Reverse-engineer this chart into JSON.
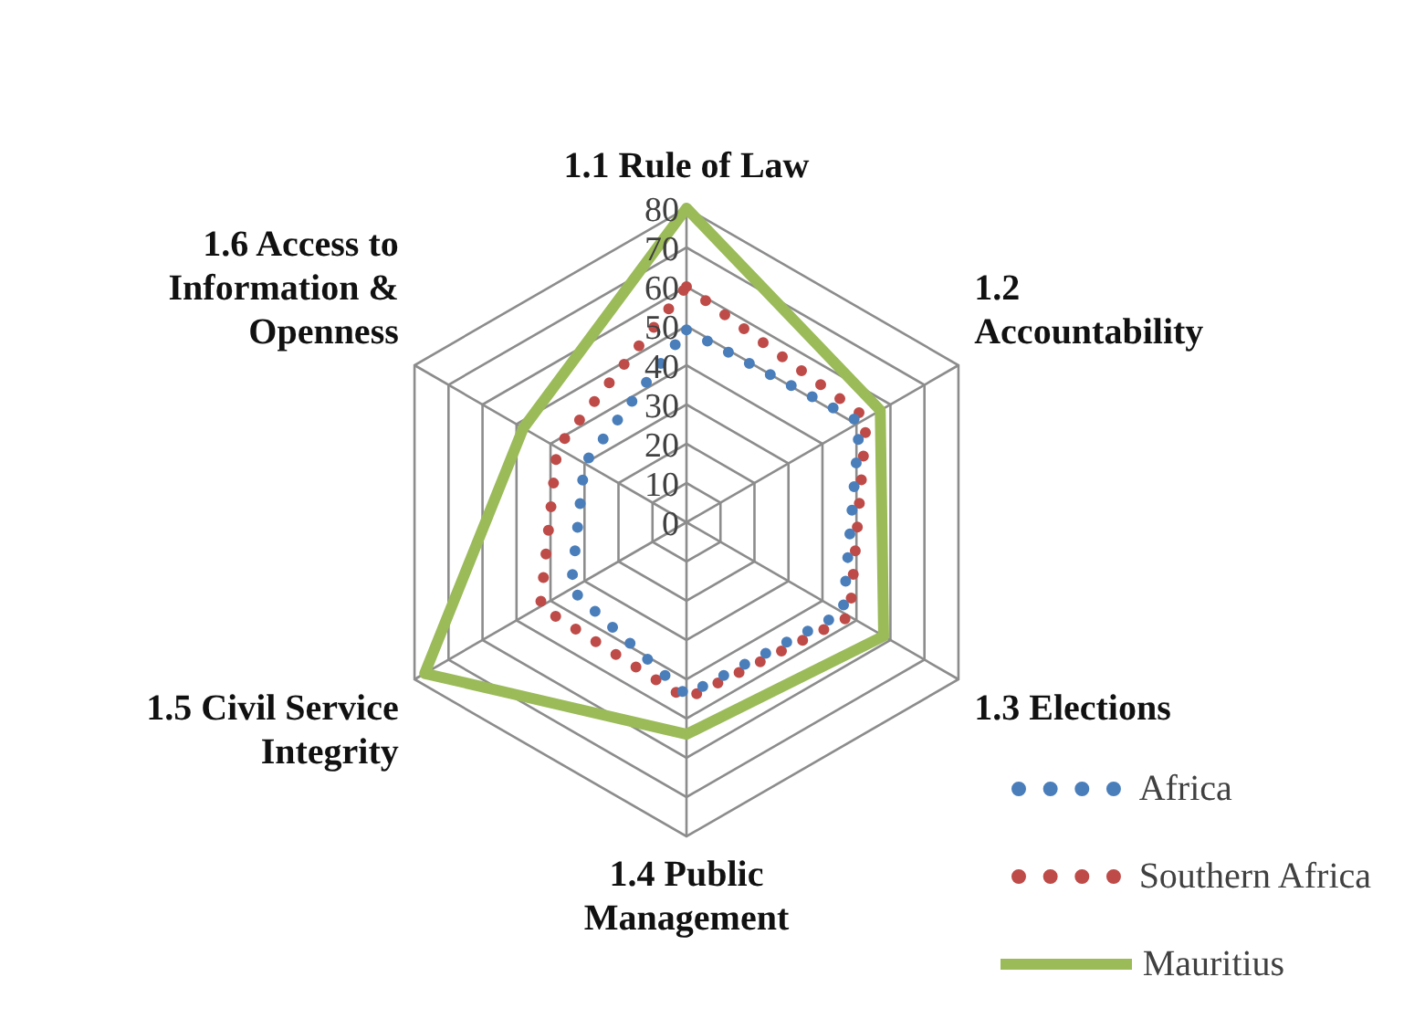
{
  "chart_data": {
    "type": "radar",
    "categories": [
      "1.1 Rule of Law",
      "1.2 Accountability",
      "1.3 Elections",
      "1.4 Public Management",
      "1.5 Civil Service Integrity",
      "1.6 Access to Information & Openness"
    ],
    "series": [
      {
        "name": "Africa",
        "color": "#4a7ebb",
        "line_style": "dotted",
        "values": [
          49,
          51,
          46,
          44,
          34,
          30
        ]
      },
      {
        "name": "Southern Africa",
        "color": "#be4b48",
        "line_style": "dotted",
        "values": [
          60,
          53,
          48,
          45,
          43,
          38
        ]
      },
      {
        "name": "Mauritius",
        "color": "#9bbb59",
        "line_style": "solid",
        "values": [
          80,
          57,
          58,
          54,
          77,
          48
        ]
      }
    ],
    "ylim": [
      0,
      80
    ],
    "yticks": [
      0,
      10,
      20,
      30,
      40,
      50,
      60,
      70,
      80
    ],
    "grid": true,
    "legend": "bottom right",
    "marker": "none"
  }
}
